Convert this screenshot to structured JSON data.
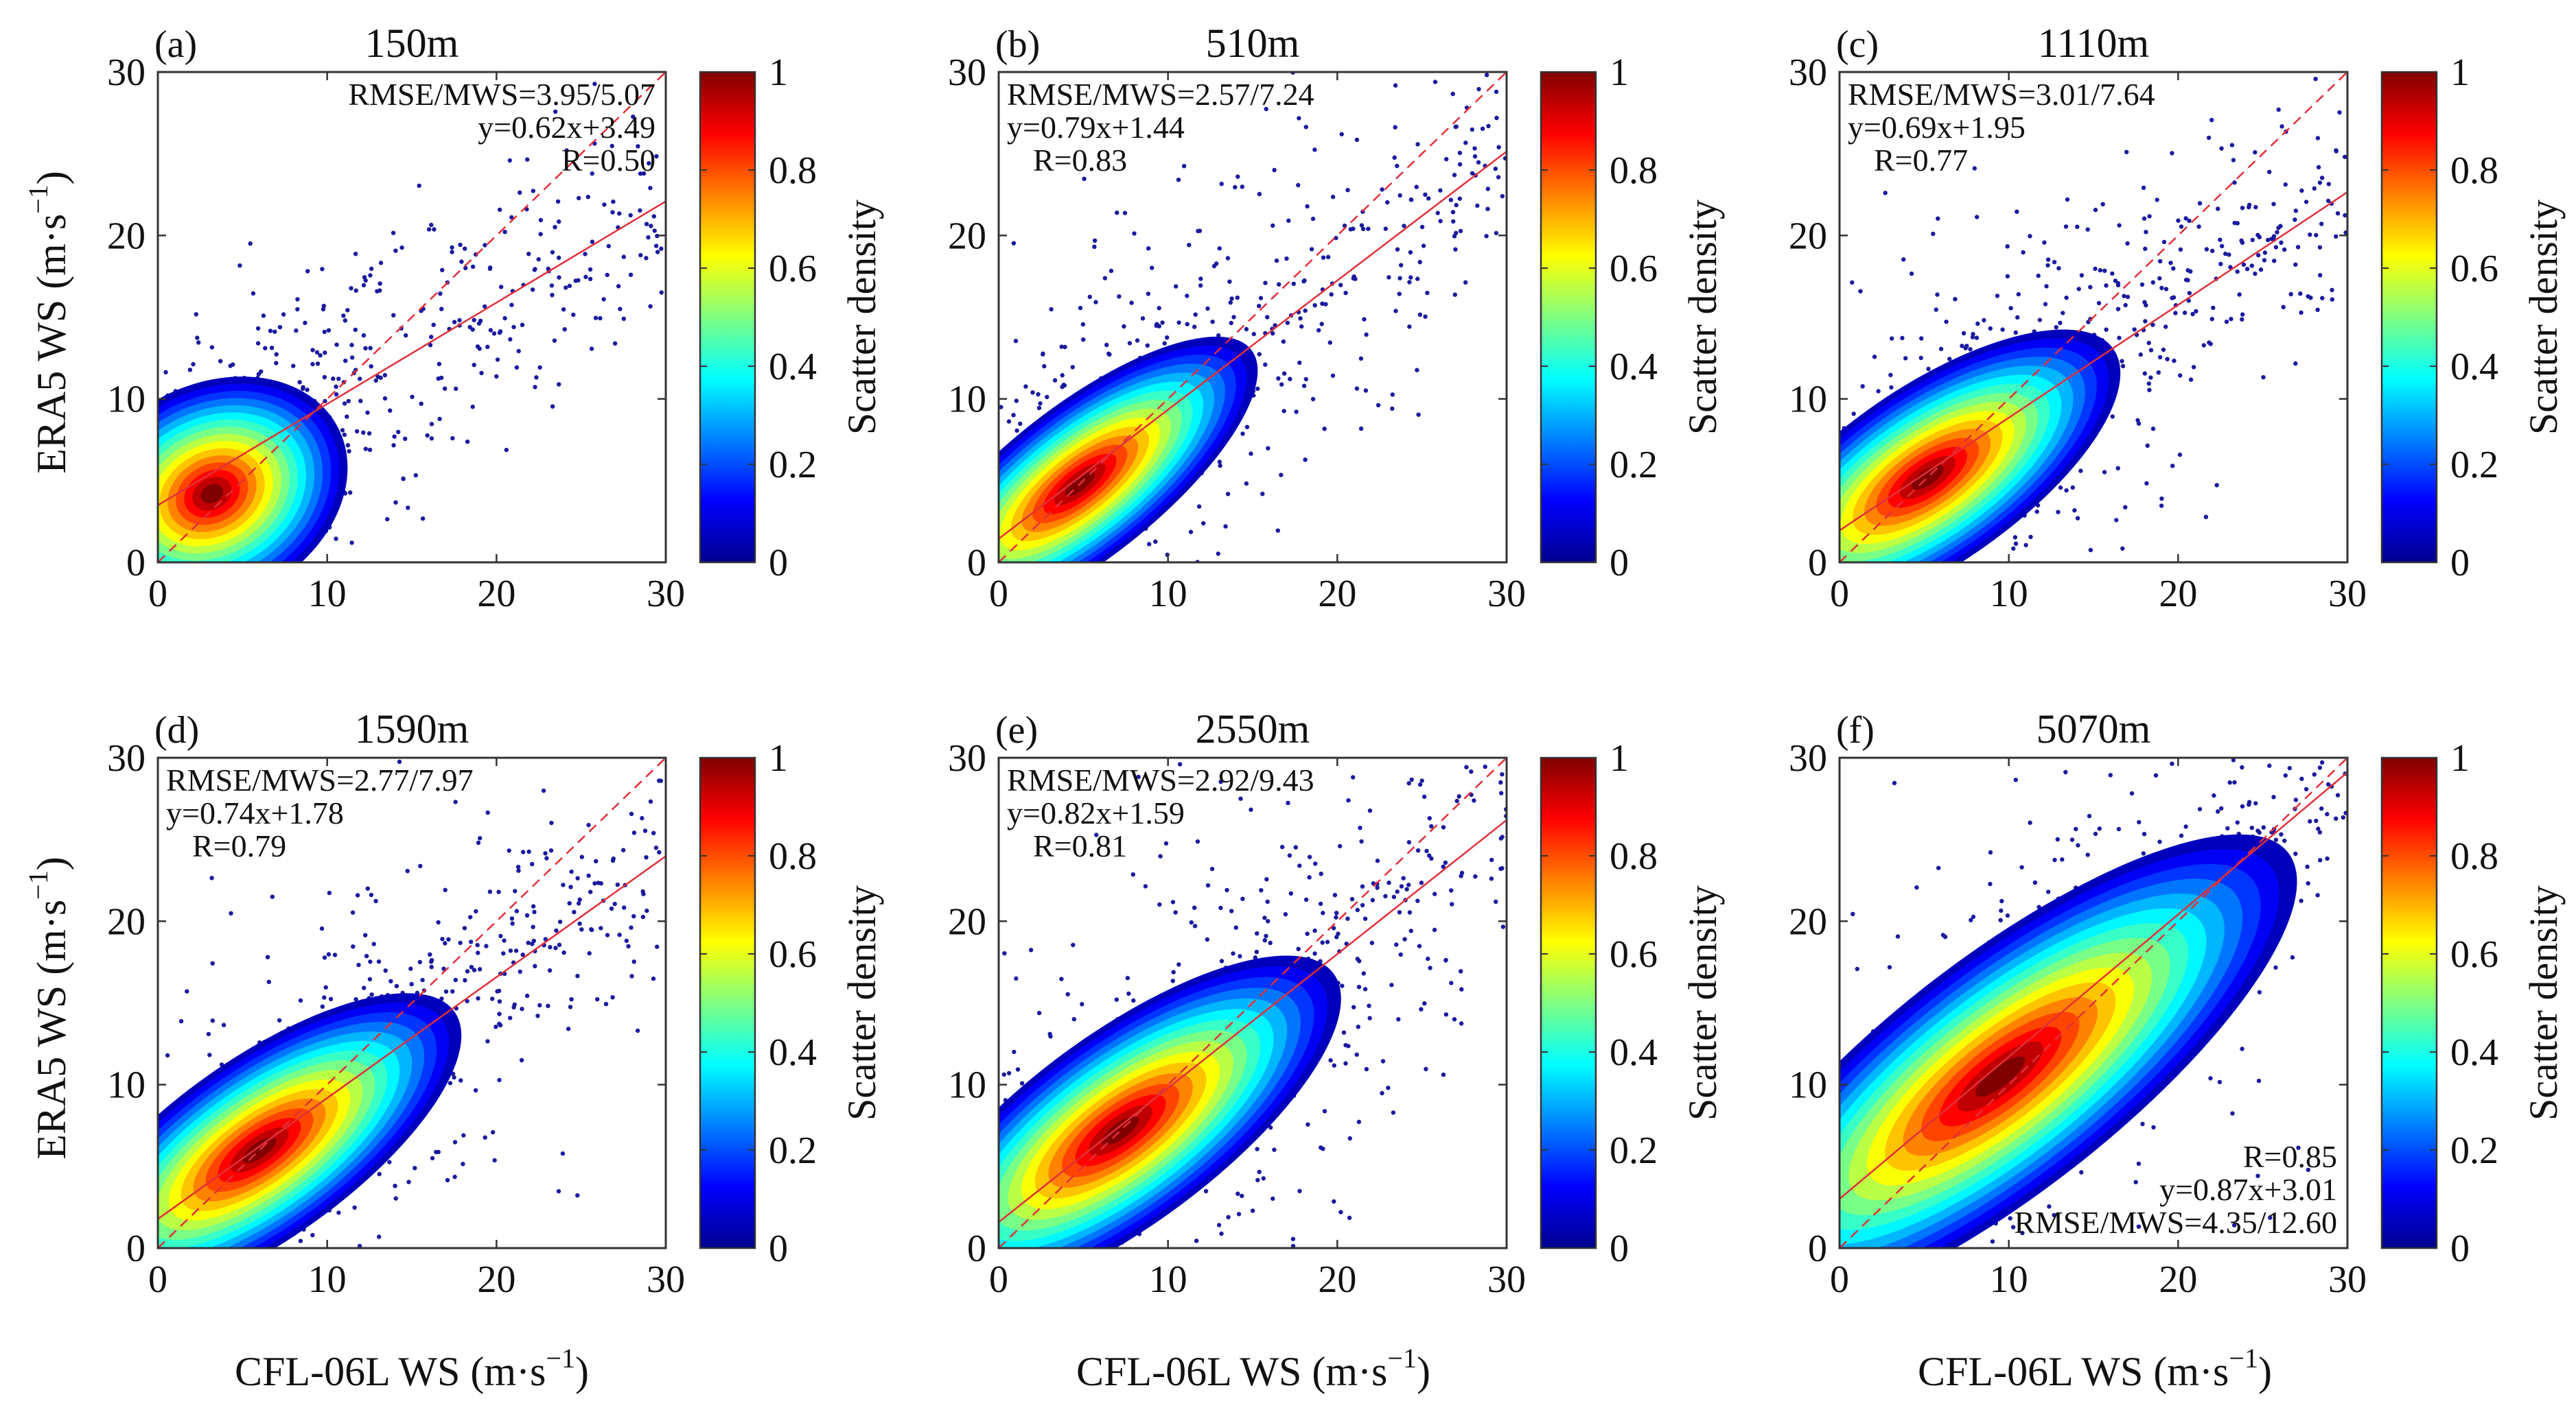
{
  "figure": {
    "y_axis_label_main": "ERA5 WS (m·s",
    "y_axis_label_exp": "−1",
    "y_axis_label_close": ")",
    "x_axis_label_main": "CFL-06L WS (m·s",
    "x_axis_label_exp": "−1",
    "x_axis_label_close": ")",
    "colorbar_label": "Scatter density",
    "colorbar_ticks": [
      "0",
      "0.2",
      "0.4",
      "0.6",
      "0.8",
      "1"
    ],
    "colorbar_colors": [
      "#00008f",
      "#0000ff",
      "#0080ff",
      "#00ffff",
      "#80ff80",
      "#ffff00",
      "#ff8000",
      "#ff0000",
      "#800000"
    ],
    "point_color": "#1a1a9e",
    "fit_color": "#e0303a"
  },
  "chart_data": [
    {
      "type": "scatter",
      "panel": "(a)",
      "title": "150m",
      "xlim": [
        0,
        30
      ],
      "ylim": [
        0,
        30
      ],
      "xticks": [
        "0",
        "10",
        "20",
        "30"
      ],
      "yticks": [
        "0",
        "10",
        "20",
        "30"
      ],
      "stats": [
        "RMSE/MWS=3.95/5.07",
        "y=0.62x+3.49",
        "R=0.50"
      ],
      "stats_position": "top-right",
      "fit": {
        "slope": 0.62,
        "intercept": 3.49
      },
      "density_core": {
        "cx": 3.2,
        "cy": 4.2,
        "sx": 2.6,
        "sy": 2.8,
        "rho": 0.5
      },
      "density_peak": 1.0,
      "colorbar_range": [
        0,
        1
      ]
    },
    {
      "type": "scatter",
      "panel": "(b)",
      "title": "510m",
      "xlim": [
        0,
        30
      ],
      "ylim": [
        0,
        30
      ],
      "xticks": [
        "0",
        "10",
        "20",
        "30"
      ],
      "yticks": [
        "0",
        "10",
        "20",
        "30"
      ],
      "stats": [
        "RMSE/MWS=2.57/7.24",
        "y=0.79x+1.44",
        "R=0.83"
      ],
      "stats_position": "top-left",
      "fit": {
        "slope": 0.79,
        "intercept": 1.44
      },
      "density_core": {
        "cx": 4.8,
        "cy": 4.8,
        "sx": 3.6,
        "sy": 3.4,
        "rho": 0.83
      },
      "density_peak": 1.0,
      "colorbar_range": [
        0,
        1
      ]
    },
    {
      "type": "scatter",
      "panel": "(c)",
      "title": "1110m",
      "xlim": [
        0,
        30
      ],
      "ylim": [
        0,
        30
      ],
      "xticks": [
        "0",
        "10",
        "20",
        "30"
      ],
      "yticks": [
        "0",
        "10",
        "20",
        "30"
      ],
      "stats": [
        "RMSE/MWS=3.01/7.64",
        "y=0.69x+1.95",
        "R=0.77"
      ],
      "stats_position": "top-left",
      "fit": {
        "slope": 0.69,
        "intercept": 1.95
      },
      "density_core": {
        "cx": 5.2,
        "cy": 5.2,
        "sx": 3.8,
        "sy": 3.4,
        "rho": 0.77
      },
      "density_peak": 1.0,
      "colorbar_range": [
        0,
        1
      ]
    },
    {
      "type": "scatter",
      "panel": "(d)",
      "title": "1590m",
      "xlim": [
        0,
        30
      ],
      "ylim": [
        0,
        30
      ],
      "xticks": [
        "0",
        "10",
        "20",
        "30"
      ],
      "yticks": [
        "0",
        "10",
        "20",
        "30"
      ],
      "stats": [
        "RMSE/MWS=2.77/7.97",
        "y=0.74x+1.78",
        "R=0.79"
      ],
      "stats_position": "top-left",
      "fit": {
        "slope": 0.74,
        "intercept": 1.78
      },
      "density_core": {
        "cx": 6.0,
        "cy": 6.0,
        "sx": 4.0,
        "sy": 3.6,
        "rho": 0.79
      },
      "density_peak": 1.0,
      "colorbar_range": [
        0,
        1
      ]
    },
    {
      "type": "scatter",
      "panel": "(e)",
      "title": "2550m",
      "xlim": [
        0,
        30
      ],
      "ylim": [
        0,
        30
      ],
      "xticks": [
        "0",
        "10",
        "20",
        "30"
      ],
      "yticks": [
        "0",
        "10",
        "20",
        "30"
      ],
      "stats": [
        "RMSE/MWS=2.92/9.43",
        "y=0.82x+1.59",
        "R=0.81"
      ],
      "stats_position": "top-left",
      "fit": {
        "slope": 0.82,
        "intercept": 1.59
      },
      "density_core": {
        "cx": 7.2,
        "cy": 7.2,
        "sx": 4.4,
        "sy": 4.0,
        "rho": 0.81
      },
      "density_peak": 1.0,
      "colorbar_range": [
        0,
        1
      ]
    },
    {
      "type": "scatter",
      "panel": "(f)",
      "title": "5070m",
      "xlim": [
        0,
        30
      ],
      "ylim": [
        0,
        30
      ],
      "xticks": [
        "0",
        "10",
        "20",
        "30"
      ],
      "yticks": [
        "0",
        "10",
        "20",
        "30"
      ],
      "stats": [
        "R=0.85",
        "y=0.87x+3.01",
        "RMSE/MWS=4.35/12.60"
      ],
      "stats_position": "bottom-right",
      "fit": {
        "slope": 0.87,
        "intercept": 3.01
      },
      "density_core": {
        "cx": 9.5,
        "cy": 10.5,
        "sx": 6.0,
        "sy": 5.5,
        "rho": 0.85
      },
      "density_peak": 1.0,
      "colorbar_range": [
        0,
        1
      ]
    }
  ]
}
